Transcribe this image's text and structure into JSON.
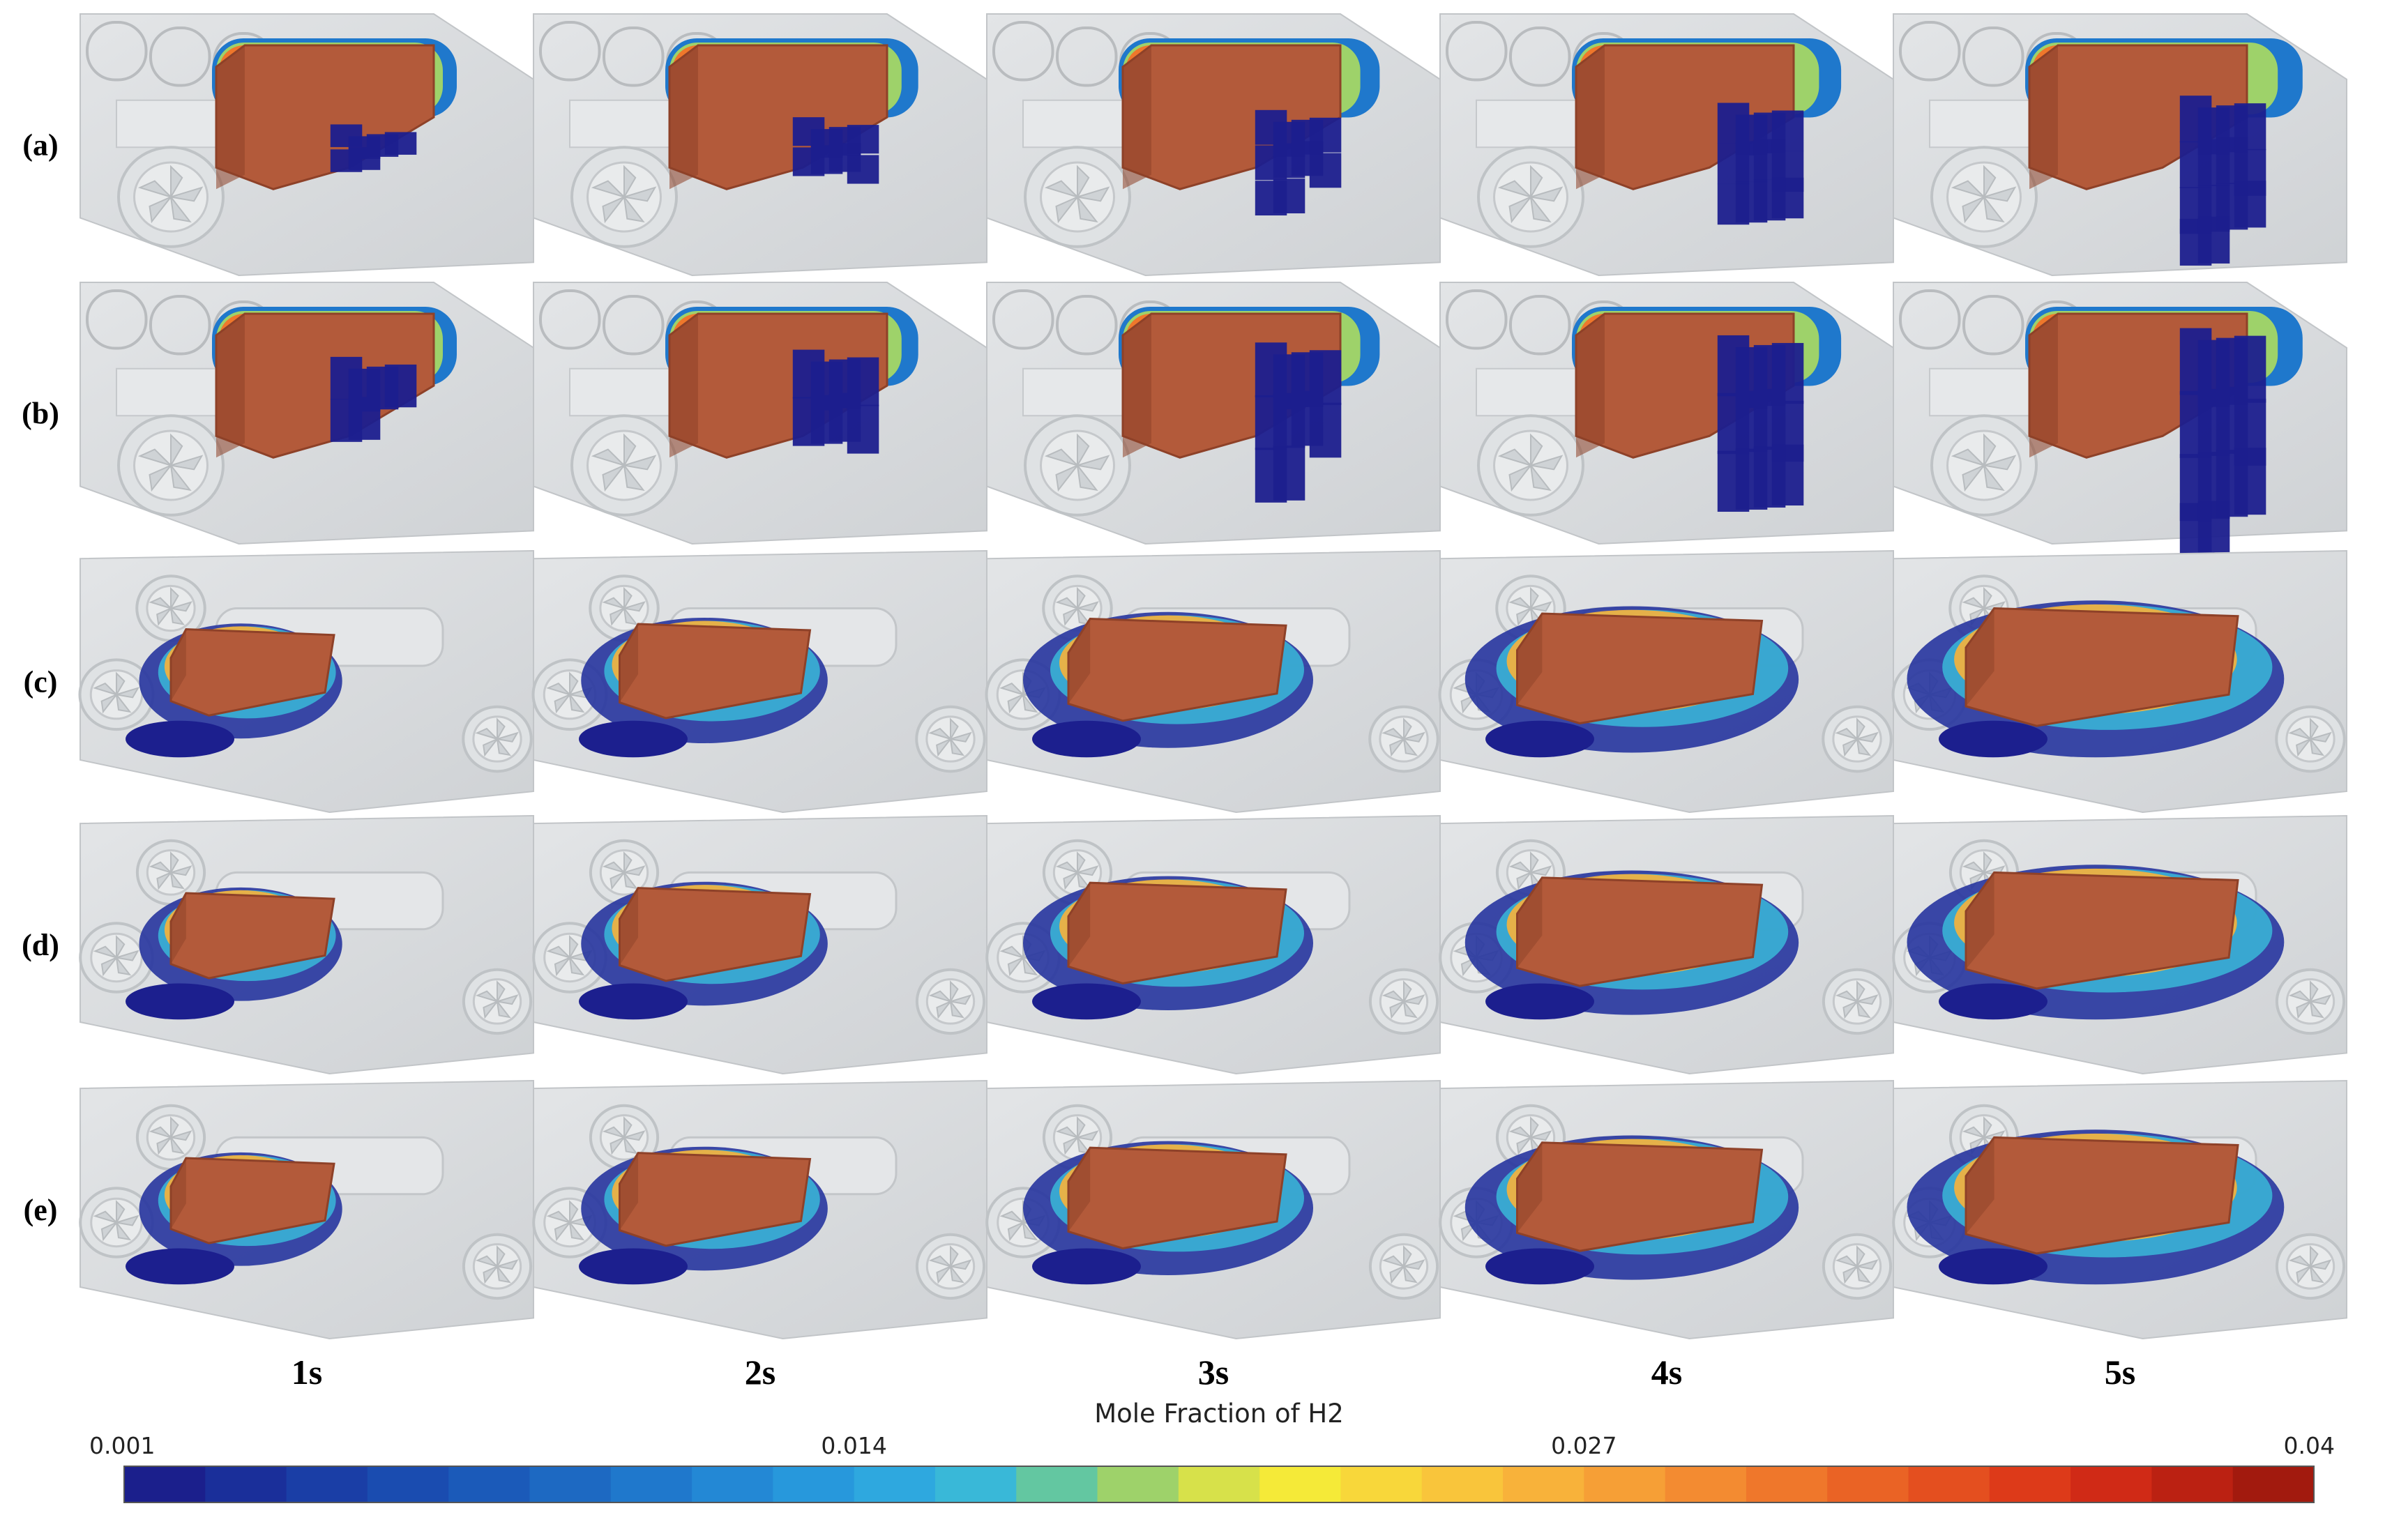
{
  "rows": [
    {
      "label": "(a)",
      "style": "tall"
    },
    {
      "label": "(b)",
      "style": "tall"
    },
    {
      "label": "(c)",
      "style": "flat"
    },
    {
      "label": "(d)",
      "style": "flat"
    },
    {
      "label": "(e)",
      "style": "flat"
    }
  ],
  "columns": [
    "1s",
    "2s",
    "3s",
    "4s",
    "5s"
  ],
  "colorbar": {
    "title": "Mole Fraction of H2",
    "ticks": [
      "0.001",
      "0.014",
      "0.027",
      "0.04"
    ],
    "colors": [
      "#1b1f8c",
      "#1a2f9a",
      "#1a3ea6",
      "#1a4cb0",
      "#1b5ab9",
      "#1d69c2",
      "#1f78cc",
      "#2388d5",
      "#2798dc",
      "#2ea8df",
      "#39b8d8",
      "#63c7a1",
      "#9ed26a",
      "#d7e14a",
      "#f5ea38",
      "#f8d73a",
      "#f9c53b",
      "#f8b23a",
      "#f69f36",
      "#f38b31",
      "#ef772b",
      "#ea6325",
      "#e44f1f",
      "#dd3a19",
      "#d02a16",
      "#bb2112",
      "#a21a0e"
    ],
    "palette": {
      "core": "#b35a3a",
      "core_dark": "#8e4128",
      "blue": "#1c1f8e",
      "car": "#d6d9dc"
    }
  }
}
